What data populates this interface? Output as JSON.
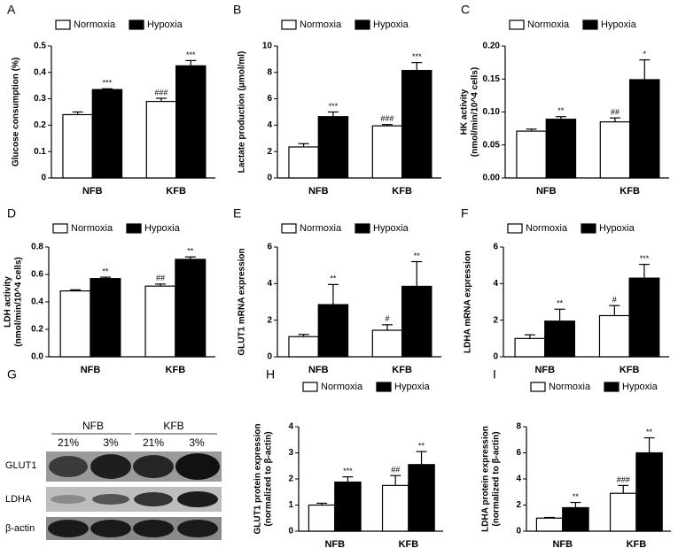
{
  "chart_data": [
    {
      "type": "bar",
      "label": "A",
      "ylabel": [
        "Glucose consumption (%)"
      ],
      "categories": [
        "NFB",
        "KFB"
      ],
      "legend": "top",
      "series": [
        {
          "name": "Normoxia",
          "color": "#ffffff",
          "values": [
            0.24,
            0.29
          ],
          "errors": [
            0.01,
            0.012
          ],
          "annotations": [
            null,
            "###"
          ]
        },
        {
          "name": "Hypoxia",
          "color": "#000000",
          "values": [
            0.335,
            0.425
          ],
          "errors": [
            0.003,
            0.02
          ],
          "annotations": [
            "***",
            "***"
          ]
        }
      ],
      "ylim": [
        0,
        0.5
      ],
      "yticks": [
        0,
        0.1,
        0.2,
        0.3,
        0.4,
        0.5
      ]
    },
    {
      "type": "bar",
      "label": "B",
      "ylabel": [
        "Lactate production (μmol/ml)"
      ],
      "categories": [
        "NFB",
        "KFB"
      ],
      "legend": "top",
      "series": [
        {
          "name": "Normoxia",
          "color": "#ffffff",
          "values": [
            2.35,
            3.95
          ],
          "errors": [
            0.25,
            0.1
          ],
          "annotations": [
            null,
            "###"
          ]
        },
        {
          "name": "Hypoxia",
          "color": "#000000",
          "values": [
            4.65,
            8.15
          ],
          "errors": [
            0.35,
            0.6
          ],
          "annotations": [
            "***",
            "***"
          ]
        }
      ],
      "ylim": [
        0,
        10
      ],
      "yticks": [
        0,
        2,
        4,
        6,
        8,
        10
      ]
    },
    {
      "type": "bar",
      "label": "C",
      "ylabel": [
        "HK activity",
        "(nmol/min/10^4 cells)"
      ],
      "categories": [
        "NFB",
        "KFB"
      ],
      "legend": "top",
      "series": [
        {
          "name": "Normoxia",
          "color": "#ffffff",
          "values": [
            0.071,
            0.085
          ],
          "errors": [
            0.003,
            0.006
          ],
          "annotations": [
            null,
            "##"
          ]
        },
        {
          "name": "Hypoxia",
          "color": "#000000",
          "values": [
            0.089,
            0.149
          ],
          "errors": [
            0.004,
            0.03
          ],
          "annotations": [
            "**",
            "*"
          ]
        }
      ],
      "ylim": [
        0,
        0.2
      ],
      "yticks": [
        {
          "value": 0,
          "label": "0.00"
        },
        0.05,
        {
          "value": 0.1,
          "label": "0.10"
        },
        0.15,
        {
          "value": 0.2,
          "label": "0.20"
        }
      ]
    },
    {
      "type": "bar",
      "label": "D",
      "ylabel": [
        "LDH activity",
        "(nmol/min/10^4 cells)"
      ],
      "categories": [
        "NFB",
        "KFB"
      ],
      "legend": "top",
      "series": [
        {
          "name": "Normoxia",
          "color": "#ffffff",
          "values": [
            0.48,
            0.515
          ],
          "errors": [
            0.008,
            0.015
          ],
          "annotations": [
            null,
            "##"
          ]
        },
        {
          "name": "Hypoxia",
          "color": "#000000",
          "values": [
            0.57,
            0.71
          ],
          "errors": [
            0.01,
            0.018
          ],
          "annotations": [
            "**",
            "**"
          ]
        }
      ],
      "ylim": [
        0,
        0.8
      ],
      "yticks": [
        {
          "value": 0,
          "label": "0.0"
        },
        0.2,
        0.4,
        0.6,
        0.8
      ]
    },
    {
      "type": "bar",
      "label": "E",
      "ylabel": [
        "GLUT1 mRNA expression"
      ],
      "categories": [
        "NFB",
        "KFB"
      ],
      "legend": "top",
      "series": [
        {
          "name": "Normoxia",
          "color": "#ffffff",
          "values": [
            1.1,
            1.45
          ],
          "errors": [
            0.12,
            0.3
          ],
          "annotations": [
            null,
            "#"
          ]
        },
        {
          "name": "Hypoxia",
          "color": "#000000",
          "values": [
            2.85,
            3.85
          ],
          "errors": [
            1.1,
            1.35
          ],
          "annotations": [
            "**",
            "**"
          ]
        }
      ],
      "ylim": [
        0,
        6
      ],
      "yticks": [
        0,
        2,
        4,
        6
      ]
    },
    {
      "type": "bar",
      "label": "F",
      "ylabel": [
        "LDHA mRNA expression"
      ],
      "categories": [
        "NFB",
        "KFB"
      ],
      "legend": "top",
      "series": [
        {
          "name": "Normoxia",
          "color": "#ffffff",
          "values": [
            1.0,
            2.25
          ],
          "errors": [
            0.2,
            0.55
          ],
          "annotations": [
            null,
            "#"
          ]
        },
        {
          "name": "Hypoxia",
          "color": "#000000",
          "values": [
            1.95,
            4.3
          ],
          "errors": [
            0.65,
            0.75
          ],
          "annotations": [
            "**",
            "***"
          ]
        }
      ],
      "ylim": [
        0,
        6
      ],
      "yticks": [
        0,
        2,
        4,
        6
      ]
    },
    {
      "type": "bar",
      "label": "H",
      "ylabel": [
        "GLUT1 protein expression",
        "(normalized to β-actin)"
      ],
      "categories": [
        "NFB",
        "KFB"
      ],
      "legend": "top",
      "series": [
        {
          "name": "Normoxia",
          "color": "#ffffff",
          "values": [
            1.0,
            1.75
          ],
          "errors": [
            0.07,
            0.38
          ],
          "annotations": [
            null,
            "##"
          ]
        },
        {
          "name": "Hypoxia",
          "color": "#000000",
          "values": [
            1.88,
            2.55
          ],
          "errors": [
            0.2,
            0.5
          ],
          "annotations": [
            "***",
            "**"
          ]
        }
      ],
      "ylim": [
        0,
        4
      ],
      "yticks": [
        0,
        1,
        2,
        3,
        4
      ]
    },
    {
      "type": "bar",
      "label": "I",
      "ylabel": [
        "LDHA protein expression",
        "(normalized to β-actin)"
      ],
      "categories": [
        "NFB",
        "KFB"
      ],
      "legend": "top",
      "series": [
        {
          "name": "Normoxia",
          "color": "#ffffff",
          "values": [
            1.0,
            2.9
          ],
          "errors": [
            0.05,
            0.6
          ],
          "annotations": [
            null,
            "###"
          ]
        },
        {
          "name": "Hypoxia",
          "color": "#000000",
          "values": [
            1.8,
            6.0
          ],
          "errors": [
            0.4,
            1.15
          ],
          "annotations": [
            "**",
            "**"
          ]
        }
      ],
      "ylim": [
        0,
        8
      ],
      "yticks": [
        0,
        2,
        4,
        6,
        8
      ]
    }
  ],
  "blot": {
    "label": "G",
    "groups": [
      "NFB",
      "KFB"
    ],
    "lanes": [
      "21%",
      "3%",
      "21%",
      "3%"
    ],
    "rows": [
      "GLUT1",
      "LDHA",
      "β-actin"
    ]
  }
}
